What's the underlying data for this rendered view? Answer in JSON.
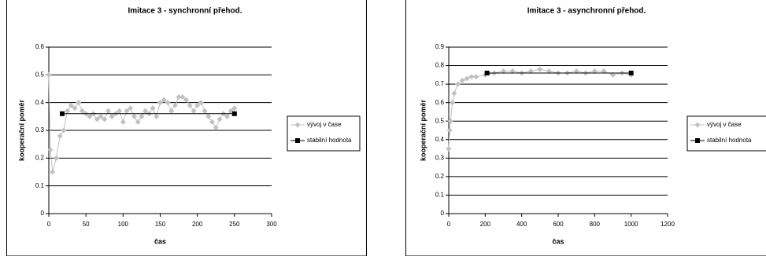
{
  "chart_data": [
    {
      "type": "line",
      "title": "Imitace 3 - synchronní přehod.",
      "x_label": "čas",
      "y_label": "kooperační poměr",
      "xlim": [
        0,
        300
      ],
      "xticks": [
        0,
        50,
        100,
        150,
        200,
        250,
        300
      ],
      "ylim": [
        0,
        0.6
      ],
      "yticks": [
        0,
        0.1,
        0.2,
        0.3,
        0.4,
        0.5,
        0.6
      ],
      "grid": true,
      "legend": "right",
      "series": [
        {
          "name": "vývoj v čase",
          "color": "#c0c0c0",
          "marker": "diamond",
          "x": [
            0,
            2,
            5,
            10,
            15,
            20,
            25,
            30,
            35,
            40,
            45,
            50,
            55,
            60,
            65,
            70,
            75,
            80,
            85,
            90,
            95,
            100,
            105,
            110,
            115,
            120,
            125,
            130,
            135,
            140,
            145,
            150,
            155,
            160,
            165,
            170,
            175,
            180,
            185,
            190,
            195,
            200,
            205,
            210,
            215,
            220,
            225,
            230,
            235,
            240,
            245,
            250
          ],
          "values": [
            0.5,
            0.23,
            0.15,
            0.2,
            0.28,
            0.3,
            0.37,
            0.39,
            0.38,
            0.4,
            0.37,
            0.36,
            0.35,
            0.36,
            0.34,
            0.35,
            0.34,
            0.37,
            0.35,
            0.36,
            0.37,
            0.33,
            0.37,
            0.38,
            0.35,
            0.33,
            0.35,
            0.37,
            0.36,
            0.38,
            0.35,
            0.4,
            0.41,
            0.4,
            0.37,
            0.39,
            0.42,
            0.42,
            0.41,
            0.39,
            0.37,
            0.39,
            0.4,
            0.37,
            0.35,
            0.33,
            0.31,
            0.34,
            0.36,
            0.35,
            0.37,
            0.38
          ]
        },
        {
          "name": "stabilní hodnota",
          "color": "#000000",
          "marker": "square",
          "x": [
            18,
            250
          ],
          "values": [
            0.36,
            0.36
          ]
        }
      ]
    },
    {
      "type": "line",
      "title": "Imitace 3 - asynchronní přehod.",
      "x_label": "čas",
      "y_label": "kooperační poměr",
      "xlim": [
        0,
        1200
      ],
      "xticks": [
        0,
        200,
        400,
        600,
        800,
        1000,
        1200
      ],
      "ylim": [
        0,
        0.9
      ],
      "yticks": [
        0,
        0.1,
        0.2,
        0.3,
        0.4,
        0.5,
        0.6,
        0.7,
        0.8,
        0.9
      ],
      "grid": true,
      "legend": "right",
      "series": [
        {
          "name": "vývoj v čase",
          "color": "#c0c0c0",
          "marker": "diamond",
          "x": [
            0,
            5,
            10,
            20,
            30,
            50,
            75,
            100,
            125,
            150,
            200,
            250,
            300,
            350,
            400,
            450,
            500,
            550,
            600,
            650,
            700,
            750,
            800,
            850,
            900,
            950,
            1000
          ],
          "values": [
            0.35,
            0.45,
            0.5,
            0.6,
            0.65,
            0.7,
            0.72,
            0.73,
            0.74,
            0.74,
            0.75,
            0.76,
            0.77,
            0.77,
            0.76,
            0.77,
            0.78,
            0.77,
            0.76,
            0.76,
            0.77,
            0.76,
            0.77,
            0.77,
            0.75,
            0.76,
            0.75
          ]
        },
        {
          "name": "stabilní hodnota",
          "color": "#000000",
          "marker": "square",
          "x": [
            210,
            1000
          ],
          "values": [
            0.76,
            0.76
          ]
        }
      ]
    }
  ]
}
